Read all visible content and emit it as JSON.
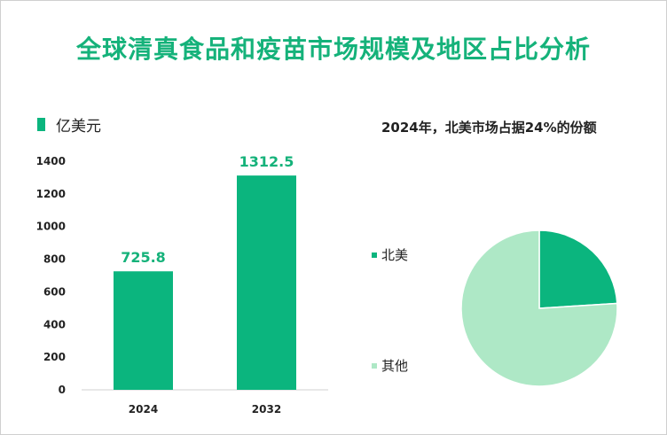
{
  "title": "全球清真食品和疫苗市场规模及地区占比分析",
  "chart_data": [
    {
      "type": "bar",
      "legend": "亿美元",
      "categories": [
        "2024",
        "2032"
      ],
      "values": [
        725.8,
        1312.5
      ],
      "value_labels": [
        "725.8",
        "1312.5"
      ],
      "yticks": [
        "0",
        "200",
        "400",
        "600",
        "800",
        "1000",
        "1200",
        "1400"
      ],
      "ylim": [
        0,
        1400
      ],
      "bar_color": "#0bb57e",
      "label_color": "#15b27a"
    },
    {
      "type": "pie",
      "title": "2024年，北美市场占据24%的份额",
      "slices": [
        {
          "label": "北美",
          "value": 24,
          "color": "#0bb57e"
        },
        {
          "label": "其他",
          "value": 76,
          "color": "#aee8c6"
        }
      ]
    }
  ]
}
